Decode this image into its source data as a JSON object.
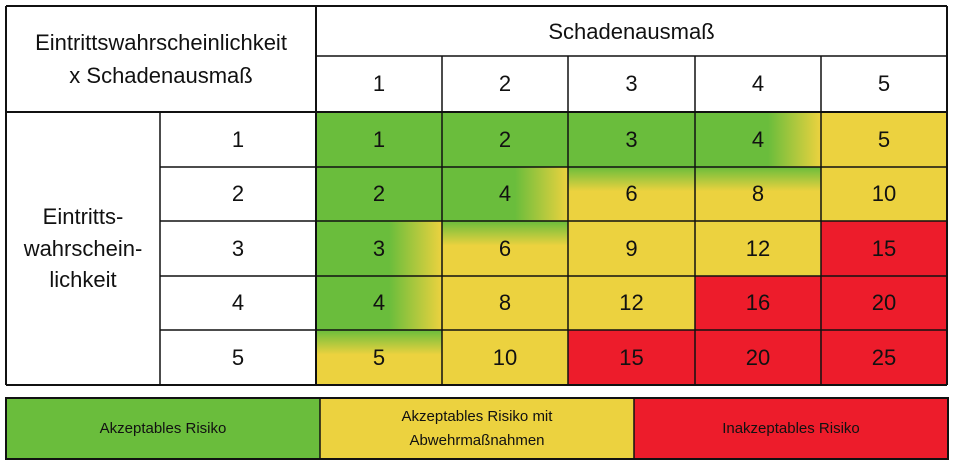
{
  "corner_label_line1": "Eintrittswahrscheinlichkeit",
  "corner_label_line2": "x Schadenausmaß",
  "column_title": "Schadenausmaß",
  "row_title_lines": [
    "Eintritts-",
    "wahrschein-",
    "lichkeit"
  ],
  "column_levels": [
    "1",
    "2",
    "3",
    "4",
    "5"
  ],
  "row_levels": [
    "1",
    "2",
    "3",
    "4",
    "5"
  ],
  "colors": {
    "green": "#6abd3c",
    "yellow": "#ecd23f",
    "red": "#ed1c2b",
    "border": "#111111"
  },
  "matrix": [
    [
      {
        "v": "1",
        "c": "green"
      },
      {
        "v": "2",
        "c": "green"
      },
      {
        "v": "3",
        "c": "green"
      },
      {
        "v": "4",
        "c": "green"
      },
      {
        "v": "5",
        "c": "yellow"
      }
    ],
    [
      {
        "v": "2",
        "c": "green"
      },
      {
        "v": "4",
        "c": "green"
      },
      {
        "v": "6",
        "c": "yellow"
      },
      {
        "v": "8",
        "c": "yellow"
      },
      {
        "v": "10",
        "c": "yellow"
      }
    ],
    [
      {
        "v": "3",
        "c": "green"
      },
      {
        "v": "6",
        "c": "yellow"
      },
      {
        "v": "9",
        "c": "yellow"
      },
      {
        "v": "12",
        "c": "yellow"
      },
      {
        "v": "15",
        "c": "red"
      }
    ],
    [
      {
        "v": "4",
        "c": "green"
      },
      {
        "v": "8",
        "c": "yellow"
      },
      {
        "v": "12",
        "c": "yellow"
      },
      {
        "v": "16",
        "c": "red"
      },
      {
        "v": "20",
        "c": "red"
      }
    ],
    [
      {
        "v": "5",
        "c": "yellow"
      },
      {
        "v": "10",
        "c": "yellow"
      },
      {
        "v": "15",
        "c": "red"
      },
      {
        "v": "20",
        "c": "red"
      },
      {
        "v": "25",
        "c": "red"
      }
    ]
  ],
  "legend": [
    {
      "lines": [
        "Akzeptables Risiko"
      ],
      "c": "green"
    },
    {
      "lines": [
        "Akzeptables Risiko mit",
        "Abwehrmaßnahmen"
      ],
      "c": "yellow"
    },
    {
      "lines": [
        "Inakzeptables Risiko"
      ],
      "c": "red"
    }
  ]
}
